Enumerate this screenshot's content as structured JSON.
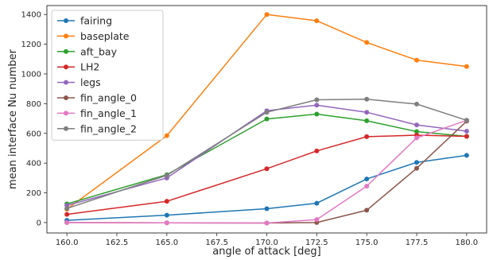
{
  "chart_data": {
    "type": "line",
    "title": "",
    "xlabel": "angle of attack [deg]",
    "ylabel": "mean interface Nu number",
    "xlim": [
      159.0,
      181.0
    ],
    "ylim": [
      -70,
      1460
    ],
    "xticks": [
      160.0,
      162.5,
      165.0,
      167.5,
      170.0,
      172.5,
      175.0,
      177.5,
      180.0
    ],
    "xtick_labels": [
      "160.0",
      "162.5",
      "165.0",
      "167.5",
      "170.0",
      "172.5",
      "175.0",
      "177.5",
      "180.0"
    ],
    "yticks": [
      0,
      200,
      400,
      600,
      800,
      1000,
      1200,
      1400
    ],
    "ytick_labels": [
      "0",
      "200",
      "400",
      "600",
      "800",
      "1000",
      "1200",
      "1400"
    ],
    "grid": false,
    "legend_position": "top-left",
    "x": [
      160,
      165,
      170,
      172.5,
      175,
      177.5,
      180
    ],
    "series": [
      {
        "name": "fairing",
        "color": "#1f77b4",
        "values": [
          15,
          50,
          93,
          130,
          293,
          405,
          452
        ]
      },
      {
        "name": "baseplate",
        "color": "#ff7f0e",
        "values": [
          90,
          585,
          1400,
          1358,
          1212,
          1093,
          1050
        ]
      },
      {
        "name": "aft_bay",
        "color": "#2ca02c",
        "values": [
          125,
          322,
          697,
          730,
          685,
          612,
          580
        ]
      },
      {
        "name": "LH2",
        "color": "#d62728",
        "values": [
          55,
          143,
          362,
          482,
          578,
          588,
          580
        ]
      },
      {
        "name": "legs",
        "color": "#9467bd",
        "values": [
          115,
          300,
          752,
          790,
          742,
          657,
          615
        ]
      },
      {
        "name": "fin_angle_0",
        "color": "#8c564b",
        "values": [
          0,
          -2,
          -3,
          0,
          83,
          365,
          682
        ]
      },
      {
        "name": "fin_angle_1",
        "color": "#e377c2",
        "values": [
          0,
          -2,
          -3,
          20,
          245,
          570,
          688
        ]
      },
      {
        "name": "fin_angle_2",
        "color": "#7f7f7f",
        "values": [
          95,
          318,
          742,
          826,
          830,
          797,
          688
        ]
      }
    ]
  }
}
